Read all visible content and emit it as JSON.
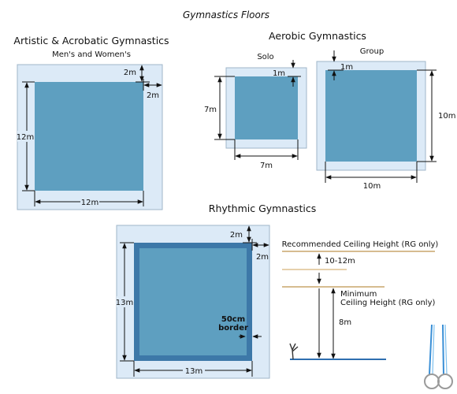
{
  "title": "Gymnastics Floors",
  "artistic": {
    "title": "Artistic & Acrobatic Gymnastics",
    "subtitle": "Men's and Women's",
    "dim_top": "2m",
    "dim_right": "2m",
    "dim_height": "12m",
    "dim_width": "12m"
  },
  "aerobic": {
    "title": "Aerobic Gymnastics",
    "solo": {
      "label": "Solo",
      "dim_margin": "1m",
      "dim_height": "7m",
      "dim_width": "7m"
    },
    "group": {
      "label": "Group",
      "dim_margin": "1m",
      "dim_height": "10m",
      "dim_width": "10m"
    }
  },
  "rhythmic": {
    "title": "Rhythmic Gymnastics",
    "dim_top": "2m",
    "dim_right": "2m",
    "dim_height": "13m",
    "dim_width": "13m",
    "border_label_1": "50cm",
    "border_label_2": "border"
  },
  "ceiling": {
    "recommended_label": "Recommended Ceiling Height (RG only)",
    "range_label": "10-12m",
    "minimum_label_1": "Minimum",
    "minimum_label_2": "Ceiling Height (RG only)",
    "min_value": "8m"
  },
  "colors": {
    "mat": "#5e9fc0",
    "mat_border": "#3d78a8",
    "safety_area": "#dceaf7",
    "ceiling_line": "#c9a56b",
    "floor_line": "#2f6fb0"
  }
}
